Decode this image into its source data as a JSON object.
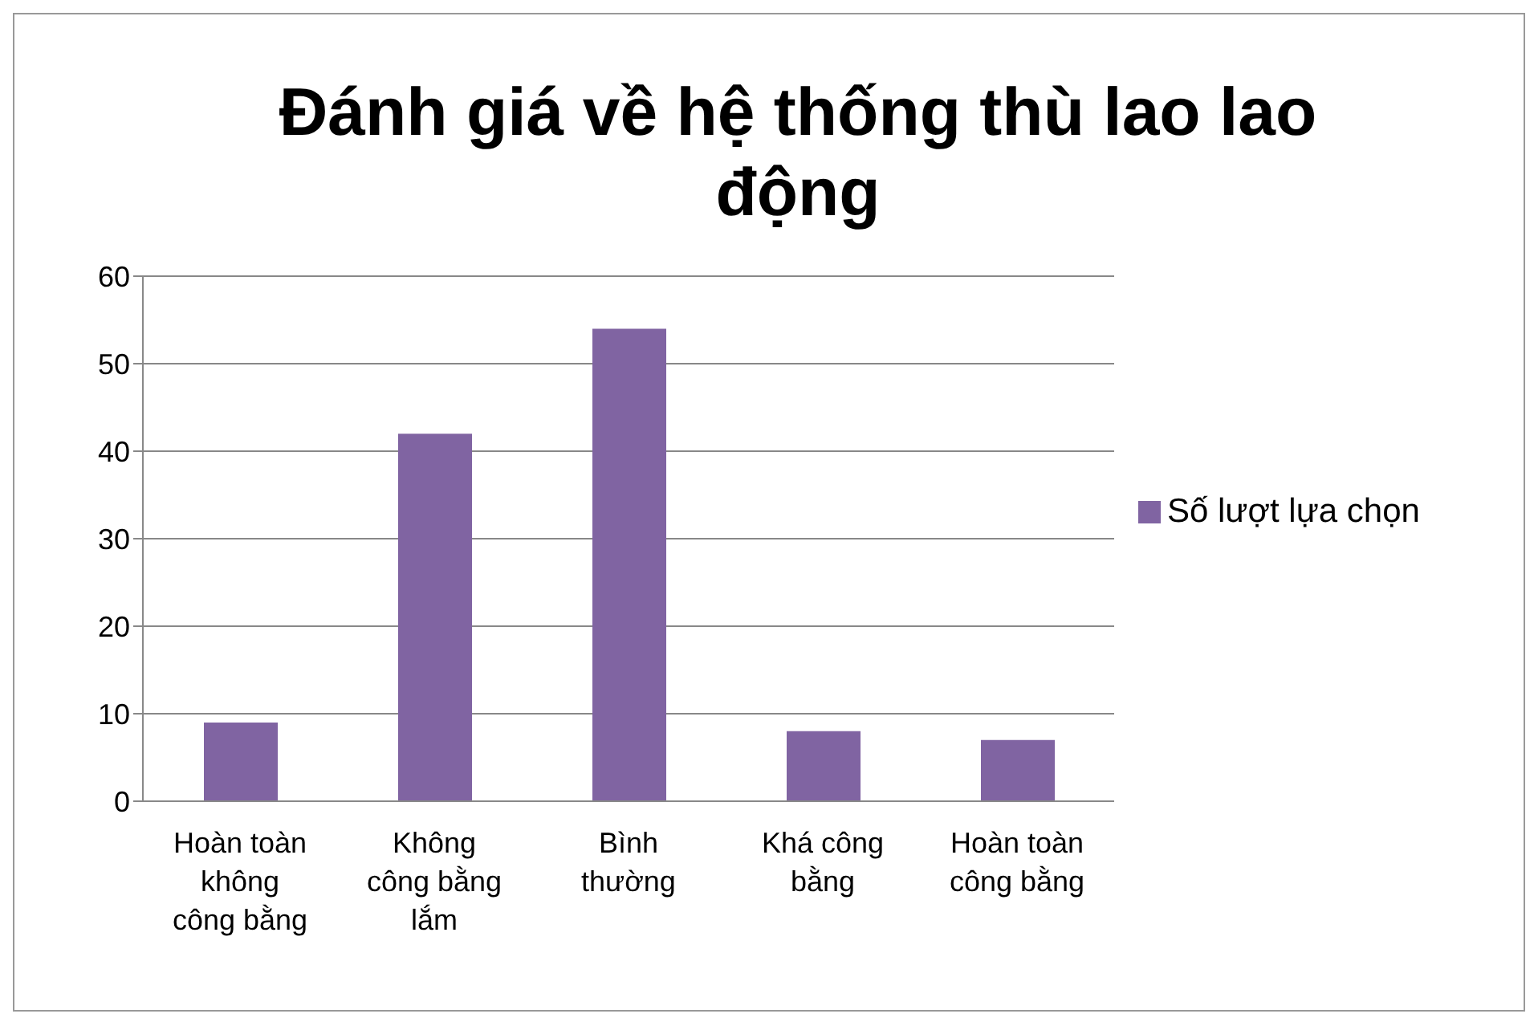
{
  "chart_data": {
    "type": "bar",
    "title": "Đánh giá về hệ thống thù lao lao động",
    "categories": [
      "Hoàn toàn không công bằng",
      "Không công bằng lắm",
      "Bình thường",
      "Khá công bằng",
      "Hoàn toàn công bằng"
    ],
    "series": [
      {
        "name": "Số lượt lựa chọn",
        "color": "#8064a2",
        "values": [
          9,
          42,
          54,
          8,
          7
        ]
      }
    ],
    "ylim": [
      0,
      60
    ],
    "yticks": [
      0,
      10,
      20,
      30,
      40,
      50,
      60
    ],
    "grid": "y",
    "legend": "right"
  }
}
